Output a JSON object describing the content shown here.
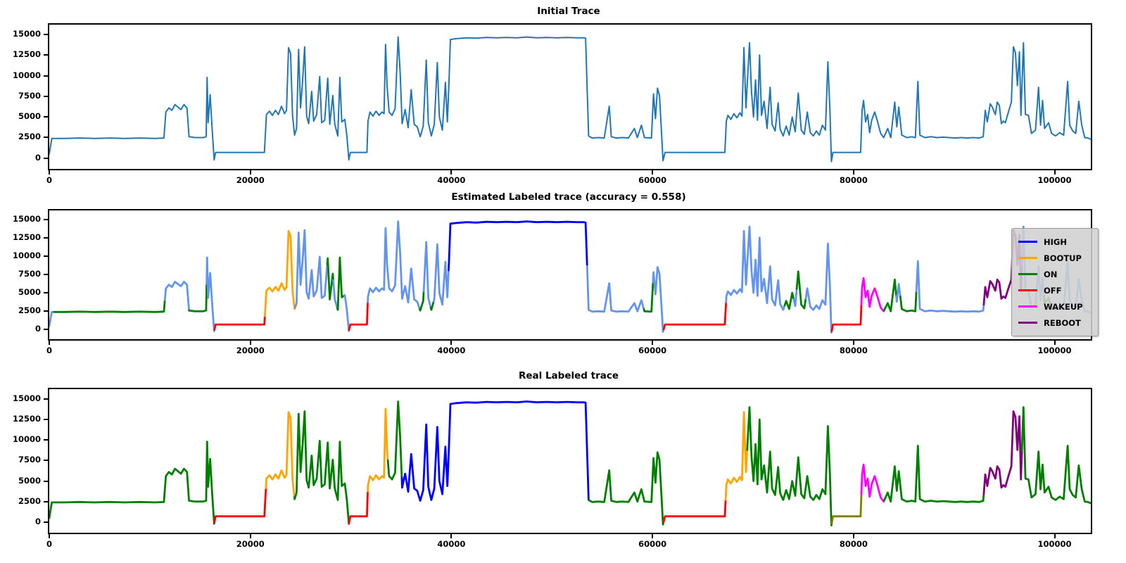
{
  "chart_data": {
    "type": "line",
    "x_ticks": [
      0,
      20000,
      40000,
      60000,
      80000,
      100000
    ],
    "y_ticks": [
      0,
      2500,
      5000,
      7500,
      10000,
      12500,
      15000
    ],
    "xlim": [
      0,
      103600
    ],
    "ylim": [
      -1300,
      16200
    ],
    "legend": [
      {
        "label": "HIGH",
        "color": "#0000ff"
      },
      {
        "label": "BOOTUP",
        "color": "#ffa500"
      },
      {
        "label": "ON",
        "color": "#008000"
      },
      {
        "label": "OFF",
        "color": "#ff0000"
      },
      {
        "label": "WAKEUP",
        "color": "#ff00ff"
      },
      {
        "label": "REBOOT",
        "color": "#800080"
      }
    ],
    "segment_colors": {
      "TRACE": "#1f77b4",
      "HIGH": "#0000ff",
      "BOOTUP": "#ffa500",
      "ON": "#008000",
      "OFF": "#ff0000",
      "WAKEUP": "#ff00ff",
      "REBOOT": "#800080",
      "UNLABELED": "#6495ed",
      "OLIVE": "#808000"
    },
    "charts": [
      {
        "title": "Initial Trace",
        "legend_visible": false,
        "segments": [
          {
            "x0": 0,
            "x1": 103600,
            "label": "TRACE"
          }
        ]
      },
      {
        "title": "Estimated Labeled trace (accuracy = 0.558)",
        "accuracy": 0.558,
        "legend_visible": true,
        "segments": [
          {
            "x0": 0,
            "x1": 500,
            "label": "UNLABELED"
          },
          {
            "x0": 500,
            "x1": 11500,
            "label": "ON"
          },
          {
            "x0": 11500,
            "x1": 13900,
            "label": "UNLABELED"
          },
          {
            "x0": 13900,
            "x1": 15650,
            "label": "ON"
          },
          {
            "x0": 15650,
            "x1": 16430,
            "label": "UNLABELED"
          },
          {
            "x0": 16430,
            "x1": 21450,
            "label": "OFF"
          },
          {
            "x0": 21450,
            "x1": 24450,
            "label": "BOOTUP"
          },
          {
            "x0": 24450,
            "x1": 27650,
            "label": "UNLABELED"
          },
          {
            "x0": 27650,
            "x1": 28250,
            "label": "ON"
          },
          {
            "x0": 28250,
            "x1": 28650,
            "label": "UNLABELED"
          },
          {
            "x0": 28650,
            "x1": 29350,
            "label": "ON"
          },
          {
            "x0": 29350,
            "x1": 29830,
            "label": "UNLABELED"
          },
          {
            "x0": 29830,
            "x1": 31680,
            "label": "OFF"
          },
          {
            "x0": 31680,
            "x1": 36850,
            "label": "UNLABELED"
          },
          {
            "x0": 36850,
            "x1": 37250,
            "label": "ON"
          },
          {
            "x0": 37250,
            "x1": 37950,
            "label": "UNLABELED"
          },
          {
            "x0": 37950,
            "x1": 38250,
            "label": "ON"
          },
          {
            "x0": 38250,
            "x1": 39720,
            "label": "UNLABELED"
          },
          {
            "x0": 39720,
            "x1": 53500,
            "label": "HIGH"
          },
          {
            "x0": 53500,
            "x1": 59150,
            "label": "UNLABELED"
          },
          {
            "x0": 59150,
            "x1": 60050,
            "label": "ON"
          },
          {
            "x0": 60050,
            "x1": 61120,
            "label": "UNLABELED"
          },
          {
            "x0": 61120,
            "x1": 67320,
            "label": "OFF"
          },
          {
            "x0": 67320,
            "x1": 73150,
            "label": "UNLABELED"
          },
          {
            "x0": 73150,
            "x1": 74050,
            "label": "ON"
          },
          {
            "x0": 74050,
            "x1": 74350,
            "label": "UNLABELED"
          },
          {
            "x0": 74350,
            "x1": 75250,
            "label": "ON"
          },
          {
            "x0": 75250,
            "x1": 77830,
            "label": "UNLABELED"
          },
          {
            "x0": 77830,
            "x1": 80780,
            "label": "OFF"
          },
          {
            "x0": 80780,
            "x1": 83050,
            "label": "WAKEUP"
          },
          {
            "x0": 83050,
            "x1": 84250,
            "label": "ON"
          },
          {
            "x0": 84250,
            "x1": 84650,
            "label": "UNLABELED"
          },
          {
            "x0": 84650,
            "x1": 86250,
            "label": "ON"
          },
          {
            "x0": 86250,
            "x1": 92950,
            "label": "UNLABELED"
          },
          {
            "x0": 92950,
            "x1": 96750,
            "label": "REBOOT"
          },
          {
            "x0": 96750,
            "x1": 98950,
            "label": "UNLABELED"
          },
          {
            "x0": 98950,
            "x1": 100050,
            "label": "ON"
          },
          {
            "x0": 100050,
            "x1": 103600,
            "label": "UNLABELED"
          }
        ]
      },
      {
        "title": "Real Labeled trace",
        "legend_visible": false,
        "segments": [
          {
            "x0": 0,
            "x1": 16430,
            "label": "ON"
          },
          {
            "x0": 16430,
            "x1": 21550,
            "label": "OFF"
          },
          {
            "x0": 21550,
            "x1": 24380,
            "label": "BOOTUP"
          },
          {
            "x0": 24380,
            "x1": 29800,
            "label": "ON"
          },
          {
            "x0": 29800,
            "x1": 31680,
            "label": "OFF"
          },
          {
            "x0": 31680,
            "x1": 33680,
            "label": "BOOTUP"
          },
          {
            "x0": 33680,
            "x1": 35060,
            "label": "ON"
          },
          {
            "x0": 35060,
            "x1": 53700,
            "label": "HIGH"
          },
          {
            "x0": 53700,
            "x1": 61120,
            "label": "ON"
          },
          {
            "x0": 61120,
            "x1": 67280,
            "label": "OFF"
          },
          {
            "x0": 67280,
            "x1": 69420,
            "label": "BOOTUP"
          },
          {
            "x0": 69420,
            "x1": 77830,
            "label": "ON"
          },
          {
            "x0": 77830,
            "x1": 80780,
            "label": "OLIVE"
          },
          {
            "x0": 80780,
            "x1": 83050,
            "label": "WAKEUP"
          },
          {
            "x0": 83050,
            "x1": 92950,
            "label": "ON"
          },
          {
            "x0": 92950,
            "x1": 96750,
            "label": "REBOOT"
          },
          {
            "x0": 96750,
            "x1": 103600,
            "label": "ON"
          }
        ]
      }
    ],
    "waveform": [
      [
        0,
        500
      ],
      [
        250,
        2400
      ],
      [
        1500,
        2400
      ],
      [
        3000,
        2450
      ],
      [
        4500,
        2400
      ],
      [
        6000,
        2450
      ],
      [
        7500,
        2400
      ],
      [
        9000,
        2450
      ],
      [
        10500,
        2400
      ],
      [
        11400,
        2450
      ],
      [
        11600,
        5600
      ],
      [
        11900,
        6100
      ],
      [
        12200,
        5800
      ],
      [
        12500,
        6500
      ],
      [
        12800,
        6200
      ],
      [
        13100,
        5900
      ],
      [
        13400,
        6500
      ],
      [
        13700,
        6100
      ],
      [
        13900,
        2600
      ],
      [
        14500,
        2500
      ],
      [
        15300,
        2500
      ],
      [
        15600,
        2600
      ],
      [
        15700,
        9800
      ],
      [
        15800,
        4300
      ],
      [
        16000,
        7700
      ],
      [
        16200,
        3600
      ],
      [
        16400,
        -200
      ],
      [
        16550,
        700
      ],
      [
        18000,
        700
      ],
      [
        20000,
        700
      ],
      [
        21400,
        700
      ],
      [
        21600,
        5300
      ],
      [
        21900,
        5700
      ],
      [
        22200,
        5200
      ],
      [
        22500,
        5800
      ],
      [
        22800,
        5300
      ],
      [
        23100,
        6300
      ],
      [
        23400,
        5400
      ],
      [
        23600,
        5800
      ],
      [
        23800,
        13400
      ],
      [
        24000,
        12700
      ],
      [
        24200,
        5200
      ],
      [
        24400,
        2800
      ],
      [
        24600,
        3600
      ],
      [
        24800,
        13200
      ],
      [
        25000,
        6100
      ],
      [
        25200,
        9400
      ],
      [
        25400,
        13500
      ],
      [
        25600,
        5100
      ],
      [
        25800,
        4200
      ],
      [
        26100,
        8100
      ],
      [
        26300,
        4500
      ],
      [
        26600,
        5300
      ],
      [
        26900,
        9900
      ],
      [
        27100,
        4300
      ],
      [
        27400,
        4600
      ],
      [
        27700,
        9700
      ],
      [
        27900,
        4100
      ],
      [
        28200,
        7600
      ],
      [
        28400,
        4100
      ],
      [
        28700,
        2700
      ],
      [
        28900,
        9800
      ],
      [
        29100,
        4400
      ],
      [
        29400,
        4700
      ],
      [
        29600,
        2700
      ],
      [
        29800,
        -200
      ],
      [
        29950,
        700
      ],
      [
        31000,
        700
      ],
      [
        31600,
        700
      ],
      [
        31700,
        4500
      ],
      [
        31900,
        5600
      ],
      [
        32200,
        5100
      ],
      [
        32500,
        5700
      ],
      [
        32800,
        5200
      ],
      [
        33100,
        5600
      ],
      [
        33300,
        5400
      ],
      [
        33450,
        13800
      ],
      [
        33600,
        8800
      ],
      [
        33800,
        5600
      ],
      [
        34100,
        5200
      ],
      [
        34400,
        6000
      ],
      [
        34700,
        14700
      ],
      [
        34900,
        10400
      ],
      [
        35100,
        4200
      ],
      [
        35400,
        5900
      ],
      [
        35700,
        3700
      ],
      [
        36000,
        8300
      ],
      [
        36300,
        4100
      ],
      [
        36600,
        3800
      ],
      [
        36900,
        2600
      ],
      [
        37200,
        3900
      ],
      [
        37500,
        11900
      ],
      [
        37700,
        4300
      ],
      [
        38000,
        2700
      ],
      [
        38300,
        4100
      ],
      [
        38600,
        11600
      ],
      [
        38800,
        5000
      ],
      [
        39100,
        3400
      ],
      [
        39400,
        9200
      ],
      [
        39600,
        4400
      ],
      [
        39750,
        9000
      ],
      [
        39900,
        14400
      ],
      [
        40500,
        14500
      ],
      [
        41500,
        14600
      ],
      [
        42500,
        14550
      ],
      [
        43500,
        14650
      ],
      [
        44500,
        14600
      ],
      [
        45500,
        14650
      ],
      [
        46500,
        14600
      ],
      [
        47500,
        14700
      ],
      [
        48500,
        14600
      ],
      [
        49500,
        14650
      ],
      [
        50500,
        14600
      ],
      [
        51500,
        14650
      ],
      [
        52500,
        14600
      ],
      [
        53200,
        14600
      ],
      [
        53350,
        14550
      ],
      [
        53650,
        2700
      ],
      [
        54000,
        2450
      ],
      [
        54600,
        2500
      ],
      [
        55200,
        2450
      ],
      [
        55700,
        6300
      ],
      [
        55900,
        2600
      ],
      [
        56400,
        2450
      ],
      [
        57000,
        2500
      ],
      [
        57600,
        2450
      ],
      [
        58200,
        3600
      ],
      [
        58500,
        2500
      ],
      [
        58900,
        4000
      ],
      [
        59200,
        2500
      ],
      [
        59900,
        2450
      ],
      [
        60100,
        7800
      ],
      [
        60300,
        4800
      ],
      [
        60500,
        8500
      ],
      [
        60700,
        7600
      ],
      [
        60900,
        3100
      ],
      [
        61050,
        -300
      ],
      [
        61250,
        700
      ],
      [
        63000,
        700
      ],
      [
        65000,
        700
      ],
      [
        67200,
        700
      ],
      [
        67350,
        4500
      ],
      [
        67500,
        5200
      ],
      [
        67800,
        4700
      ],
      [
        68100,
        5400
      ],
      [
        68400,
        4900
      ],
      [
        68700,
        5500
      ],
      [
        68900,
        5100
      ],
      [
        69100,
        13400
      ],
      [
        69300,
        6100
      ],
      [
        69650,
        14000
      ],
      [
        69850,
        8000
      ],
      [
        70050,
        5000
      ],
      [
        70250,
        9500
      ],
      [
        70450,
        4600
      ],
      [
        70650,
        12500
      ],
      [
        70850,
        5200
      ],
      [
        71100,
        6900
      ],
      [
        71400,
        3600
      ],
      [
        71700,
        8600
      ],
      [
        71900,
        4100
      ],
      [
        72200,
        3300
      ],
      [
        72500,
        6700
      ],
      [
        72700,
        3500
      ],
      [
        73000,
        2700
      ],
      [
        73300,
        3900
      ],
      [
        73600,
        2800
      ],
      [
        73900,
        5000
      ],
      [
        74200,
        3200
      ],
      [
        74500,
        7900
      ],
      [
        74800,
        3400
      ],
      [
        75100,
        2900
      ],
      [
        75400,
        5600
      ],
      [
        75700,
        3100
      ],
      [
        76000,
        2700
      ],
      [
        76300,
        3300
      ],
      [
        76600,
        2800
      ],
      [
        76900,
        4000
      ],
      [
        77200,
        3400
      ],
      [
        77450,
        11700
      ],
      [
        77650,
        5800
      ],
      [
        77800,
        -400
      ],
      [
        77950,
        700
      ],
      [
        79000,
        700
      ],
      [
        80000,
        700
      ],
      [
        80700,
        700
      ],
      [
        80850,
        5800
      ],
      [
        81000,
        7000
      ],
      [
        81200,
        4400
      ],
      [
        81400,
        5300
      ],
      [
        81600,
        3100
      ],
      [
        81800,
        4600
      ],
      [
        82100,
        5600
      ],
      [
        82400,
        4400
      ],
      [
        82700,
        3000
      ],
      [
        83000,
        2500
      ],
      [
        83400,
        3600
      ],
      [
        83700,
        2500
      ],
      [
        84100,
        6800
      ],
      [
        84300,
        3800
      ],
      [
        84500,
        6200
      ],
      [
        84800,
        2800
      ],
      [
        85300,
        2500
      ],
      [
        85800,
        2600
      ],
      [
        86150,
        2500
      ],
      [
        86400,
        9300
      ],
      [
        86600,
        2800
      ],
      [
        87100,
        2500
      ],
      [
        87700,
        2600
      ],
      [
        88300,
        2500
      ],
      [
        88900,
        2550
      ],
      [
        89500,
        2500
      ],
      [
        90100,
        2450
      ],
      [
        90700,
        2500
      ],
      [
        91300,
        2450
      ],
      [
        91900,
        2500
      ],
      [
        92500,
        2450
      ],
      [
        92900,
        2600
      ],
      [
        93100,
        5800
      ],
      [
        93300,
        4400
      ],
      [
        93600,
        6600
      ],
      [
        93800,
        6200
      ],
      [
        94100,
        5300
      ],
      [
        94300,
        6800
      ],
      [
        94500,
        6400
      ],
      [
        94700,
        4200
      ],
      [
        94900,
        4500
      ],
      [
        95100,
        4300
      ],
      [
        95400,
        5600
      ],
      [
        95700,
        6800
      ],
      [
        95900,
        13500
      ],
      [
        96100,
        12800
      ],
      [
        96300,
        8800
      ],
      [
        96500,
        12900
      ],
      [
        96650,
        5200
      ],
      [
        96900,
        14000
      ],
      [
        97100,
        5300
      ],
      [
        97400,
        5200
      ],
      [
        97700,
        3000
      ],
      [
        98100,
        3400
      ],
      [
        98400,
        8600
      ],
      [
        98600,
        4000
      ],
      [
        98800,
        7000
      ],
      [
        99000,
        3600
      ],
      [
        99400,
        4300
      ],
      [
        99700,
        3000
      ],
      [
        100100,
        2700
      ],
      [
        100500,
        3100
      ],
      [
        100900,
        2800
      ],
      [
        101300,
        9300
      ],
      [
        101500,
        4000
      ],
      [
        101800,
        3300
      ],
      [
        102100,
        3000
      ],
      [
        102400,
        6900
      ],
      [
        102700,
        4000
      ],
      [
        103000,
        2500
      ],
      [
        103300,
        2450
      ],
      [
        103600,
        2300
      ]
    ]
  }
}
